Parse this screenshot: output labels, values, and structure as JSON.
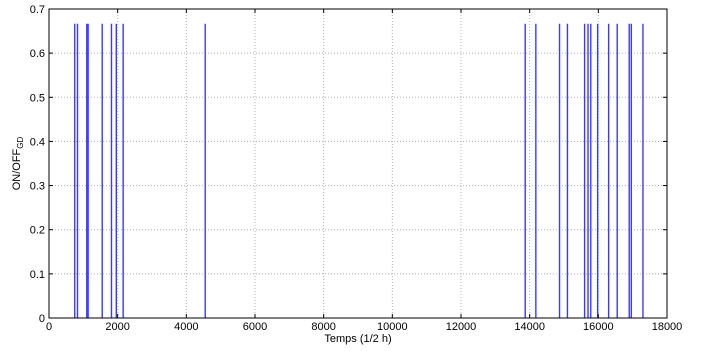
{
  "chart_data": {
    "type": "bar",
    "title": "",
    "xlabel": "Temps (1/2 h)",
    "ylabel": {
      "main": "ON/OFF",
      "sub": "GD"
    },
    "xlim": [
      0,
      18000
    ],
    "ylim": [
      0,
      0.7
    ],
    "xticks": [
      0,
      2000,
      4000,
      6000,
      8000,
      10000,
      12000,
      14000,
      16000,
      18000
    ],
    "yticks": [
      0,
      0.1,
      0.2,
      0.3,
      0.4,
      0.5,
      0.6,
      0.7
    ],
    "xtick_labels": [
      "0",
      "2000",
      "4000",
      "6000",
      "8000",
      "10000",
      "12000",
      "14000",
      "16000",
      "18000"
    ],
    "ytick_labels": [
      "0",
      "0.1",
      "0.2",
      "0.3",
      "0.4",
      "0.5",
      "0.6",
      "0.7"
    ],
    "grid": true,
    "legend": "none",
    "series": [
      {
        "color": "#3a3aff",
        "x": [
          750,
          830,
          1100,
          1140,
          1550,
          1820,
          1960,
          2160,
          4550,
          13870,
          14180,
          14870,
          15100,
          15600,
          15700,
          15780,
          15980,
          16300,
          16550,
          16900,
          16960,
          17300
        ],
        "values": [
          0.6667,
          0.6667,
          0.6667,
          0.6667,
          0.6667,
          0.6667,
          0.6667,
          0.6667,
          0.6667,
          0.6667,
          0.6667,
          0.6667,
          0.6667,
          0.6667,
          0.6667,
          0.6667,
          0.6667,
          0.6667,
          0.6667,
          0.6667,
          0.6667,
          0.6667
        ]
      }
    ]
  }
}
